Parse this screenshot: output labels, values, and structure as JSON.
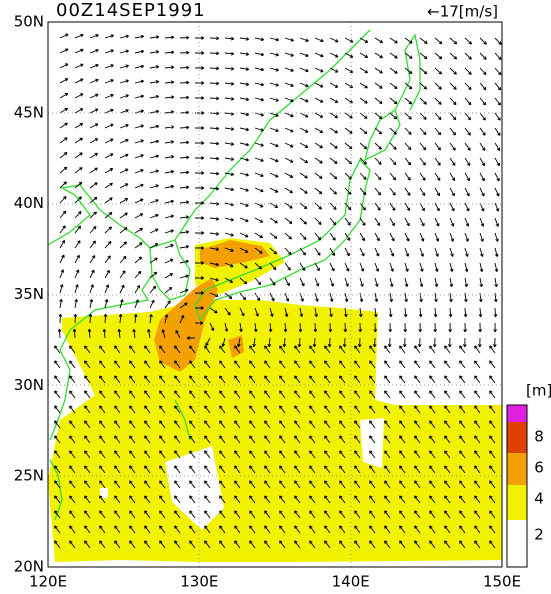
{
  "header": {
    "title": "00Z14SEP1991",
    "scale_label": "←17[m/s]"
  },
  "lat_labels": [
    "50N",
    "45N",
    "40N",
    "35N",
    "30N",
    "25N",
    "20N"
  ],
  "lon_labels": [
    "120E",
    "130E",
    "140E",
    "150E"
  ],
  "colorbar": {
    "unit": "[m]",
    "labels": [
      "8",
      "6",
      "4",
      "2"
    ]
  }
}
